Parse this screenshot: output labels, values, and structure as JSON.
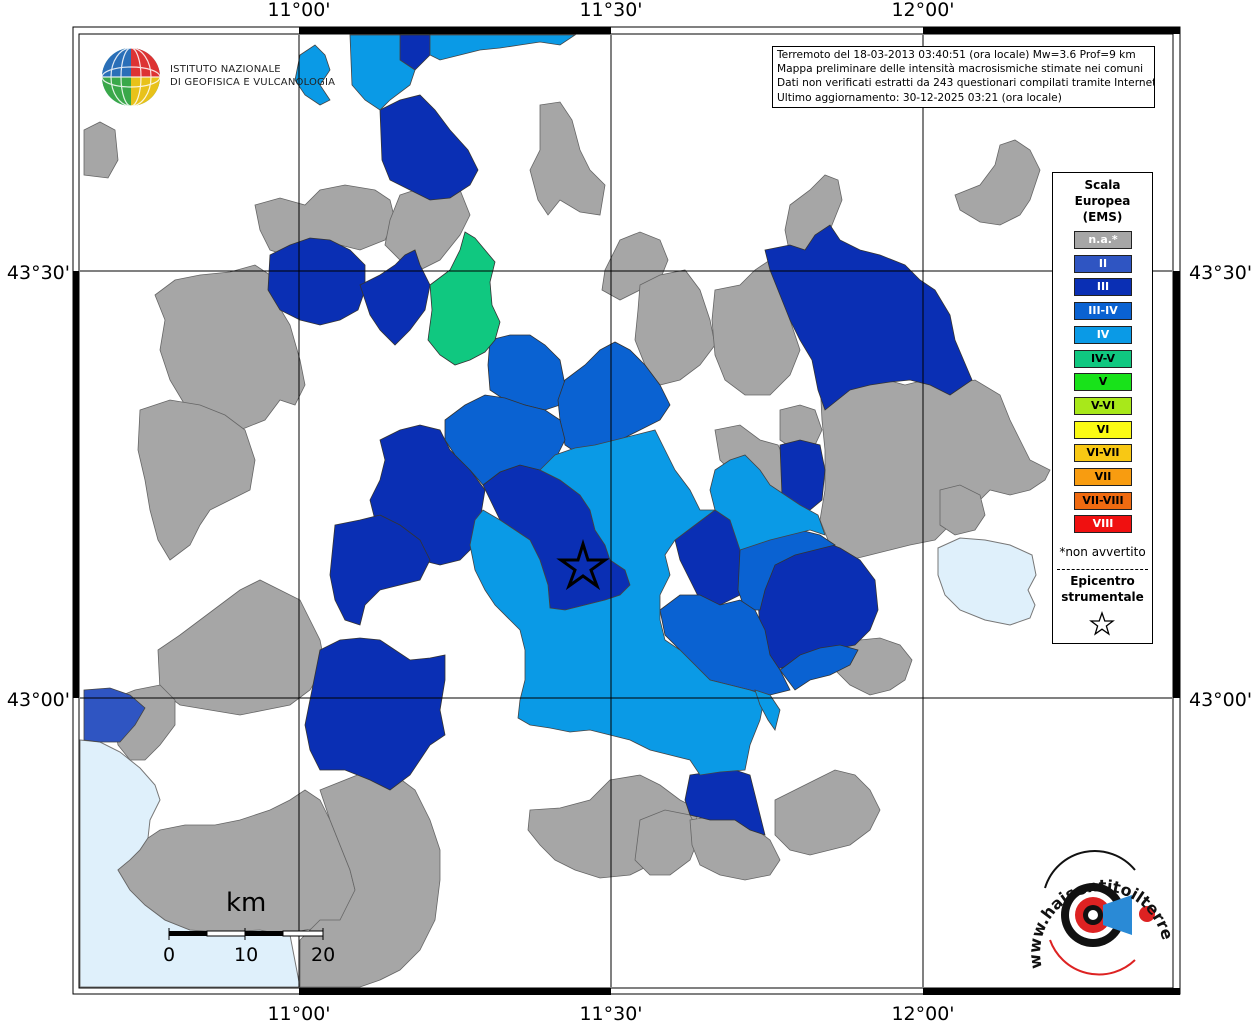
{
  "map": {
    "top_ticks": [
      "11°00'",
      "11°30'",
      "12°00'"
    ],
    "bottom_ticks": [
      "11°00'",
      "11°30'",
      "12°00'"
    ],
    "left_ticks": [
      "43°30'",
      "43°00'"
    ],
    "right_ticks": [
      "43°30'",
      "43°00'"
    ],
    "colors": {
      "na": "#a6a6a6",
      "II": "#2f55c2",
      "III": "#0a2fb4",
      "III-IV": "#0a62d2",
      "IV": "#0a9ae6",
      "IV-V": "#10c880",
      "sea": "#dff0fb",
      "lake": "#dff0fb"
    }
  },
  "info_box": {
    "line1": "Terremoto del 18-03-2013 03:40:51 (ora locale) Mw=3.6 Prof=9 km",
    "line2": "Mappa preliminare delle intensità macrosismiche stimate nei comuni",
    "line3": "Dati non verificati estratti da 243 questionari compilati tramite Internet.",
    "line4": "Ultimo aggiornamento: 30-12-2025 03:21 (ora locale)"
  },
  "logo": {
    "line1": "ISTITUTO NAZIONALE",
    "line2": "DI GEOFISICA E VULCANOLOGIA"
  },
  "legend": {
    "title_line1": "Scala",
    "title_line2": "Europea",
    "title_line3": "(EMS)",
    "items": [
      {
        "label": "n.a.*",
        "color": "#a6a6a6",
        "text_color": "#ffffff"
      },
      {
        "label": "II",
        "color": "#2f55c2",
        "text_color": "#ffffff"
      },
      {
        "label": "III",
        "color": "#0a2fb4",
        "text_color": "#ffffff"
      },
      {
        "label": "III-IV",
        "color": "#0a62d2",
        "text_color": "#ffffff"
      },
      {
        "label": "IV",
        "color": "#0a9ae6",
        "text_color": "#ffffff"
      },
      {
        "label": "IV-V",
        "color": "#10c880",
        "text_color": "#000000"
      },
      {
        "label": "V",
        "color": "#18e21a",
        "text_color": "#000000"
      },
      {
        "label": "V-VI",
        "color": "#a8e81a",
        "text_color": "#000000"
      },
      {
        "label": "VI",
        "color": "#fafa14",
        "text_color": "#000000"
      },
      {
        "label": "VI-VII",
        "color": "#f8c814",
        "text_color": "#000000"
      },
      {
        "label": "VII",
        "color": "#f89c10",
        "text_color": "#000000"
      },
      {
        "label": "VII-VIII",
        "color": "#f06a10",
        "text_color": "#000000"
      },
      {
        "label": "VIII",
        "color": "#f01010",
        "text_color": "#ffffff"
      }
    ],
    "note": "*non avvertito",
    "epicenter_line1": "Epicentro",
    "epicenter_line2": "strumentale"
  },
  "scale_bar": {
    "unit": "km",
    "labels": [
      "0",
      "10",
      "20"
    ]
  },
  "watermark": {
    "text": "www.haisentitoilterremoto.it"
  }
}
